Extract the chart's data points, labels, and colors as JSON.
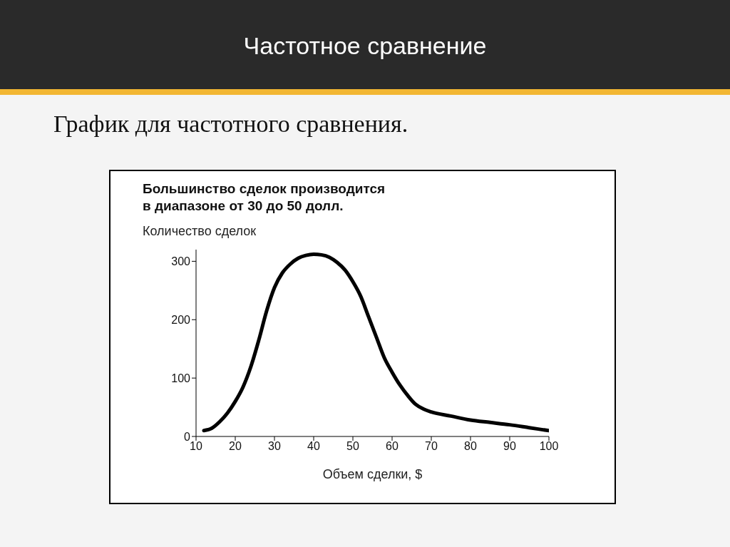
{
  "chart_data": {
    "type": "line",
    "title": "Частотное сравнение",
    "subtitle": "График для частотного сравнения.",
    "annotations": [
      "Большинство сделок производится\nв диапазоне от 30 до 50 долл."
    ],
    "xlabel": "Объем сделки, $",
    "ylabel": "Количество сделок",
    "x": [
      12,
      14,
      16,
      18,
      20,
      22,
      24,
      26,
      28,
      30,
      32,
      34,
      36,
      38,
      40,
      42,
      44,
      46,
      48,
      50,
      52,
      54,
      56,
      58,
      60,
      62,
      64,
      66,
      68,
      70,
      75,
      80,
      85,
      90,
      95,
      100
    ],
    "series": [
      {
        "color": "#000000",
        "values": [
          10,
          14,
          25,
          40,
          60,
          85,
          120,
          165,
          215,
          255,
          280,
          295,
          305,
          310,
          312,
          311,
          307,
          298,
          285,
          265,
          240,
          205,
          170,
          135,
          110,
          88,
          70,
          55,
          47,
          42,
          35,
          28,
          24,
          20,
          15,
          10
        ]
      }
    ],
    "xlim": [
      10,
      100
    ],
    "xticks": [
      10,
      20,
      30,
      40,
      50,
      60,
      70,
      80,
      90,
      100
    ],
    "ylim": [
      0,
      320
    ],
    "yticks": [
      0,
      100,
      200,
      300
    ],
    "marker": "none",
    "line_style": "solid"
  }
}
